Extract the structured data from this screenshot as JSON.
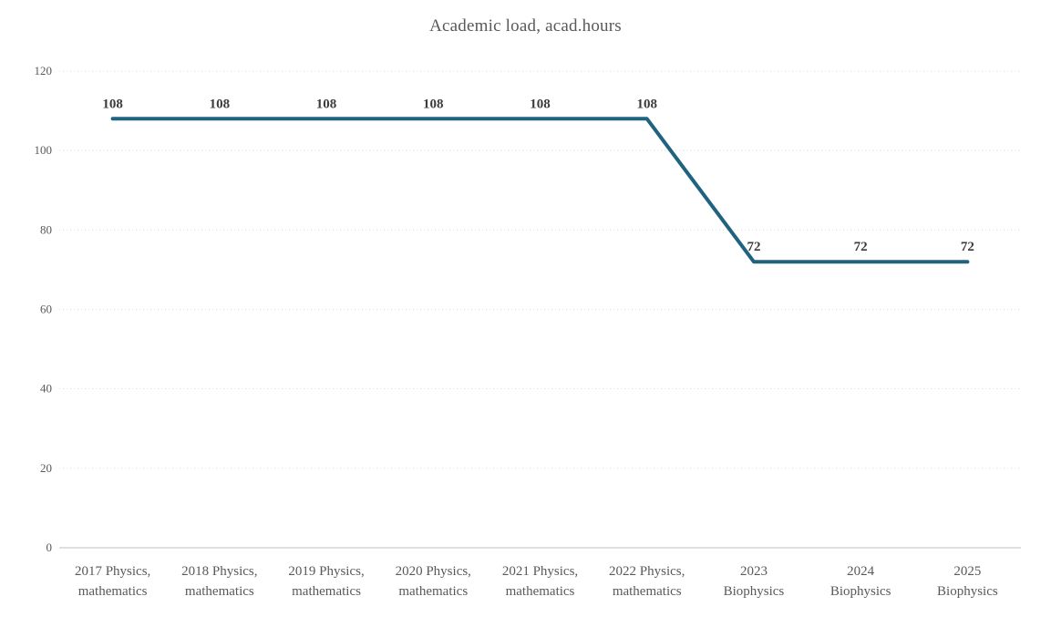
{
  "chart_data": {
    "type": "line",
    "title": "Academic load, acad.hours",
    "categories": [
      [
        "2017 Physics,",
        "mathematics"
      ],
      [
        "2018 Physics,",
        "mathematics"
      ],
      [
        "2019 Physics,",
        "mathematics"
      ],
      [
        "2020 Physics,",
        "mathematics"
      ],
      [
        "2021 Physics,",
        "mathematics"
      ],
      [
        "2022 Physics,",
        "mathematics"
      ],
      [
        "2023",
        "Biophysics"
      ],
      [
        "2024",
        "Biophysics"
      ],
      [
        "2025",
        "Biophysics"
      ]
    ],
    "values": [
      108,
      108,
      108,
      108,
      108,
      108,
      72,
      72,
      72
    ],
    "data_labels": [
      "108",
      "108",
      "108",
      "108",
      "108",
      "108",
      "72",
      "72",
      "72"
    ],
    "xlabel": "",
    "ylabel": "",
    "ylim": [
      0,
      120
    ],
    "y_ticks": [
      0,
      20,
      40,
      60,
      80,
      100,
      120
    ],
    "grid": "horizontal-dotted",
    "legend": "none",
    "colors": {
      "line": "#1f6380",
      "gridline": "#d9d9d9",
      "axis_line": "#bfbfbf",
      "tick_text": "#595959",
      "title_text": "#595959",
      "data_label_text": "#3b3b3b",
      "background": "#ffffff"
    }
  }
}
